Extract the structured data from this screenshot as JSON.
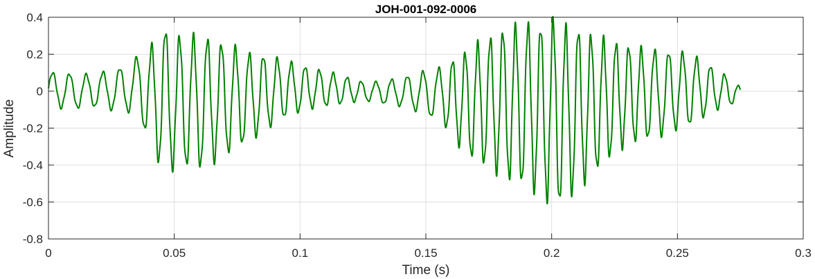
{
  "chart_data": {
    "type": "line",
    "title": "JOH-001-092-0006",
    "xlabel": "Time (s)",
    "ylabel": "Amplitude",
    "xlim": [
      0,
      0.3
    ],
    "ylim": [
      -0.8,
      0.4
    ],
    "xticks": [
      0,
      0.05,
      0.1,
      0.15,
      0.2,
      0.25,
      0.3
    ],
    "xtick_labels": [
      "0",
      "0.05",
      "0.1",
      "0.15",
      "0.2",
      "0.25",
      "0.3"
    ],
    "yticks": [
      -0.8,
      -0.6,
      -0.4,
      -0.2,
      0,
      0.2,
      0.4
    ],
    "ytick_labels": [
      "-0.8",
      "-0.6",
      "-0.4",
      "-0.2",
      "0",
      "0.2",
      "0.4"
    ],
    "grid": true,
    "series_color": "#008000",
    "series": [
      {
        "x": [
          0.0,
          0.005,
          0.01,
          0.015,
          0.02,
          0.025,
          0.03,
          0.035,
          0.04,
          0.045,
          0.05,
          0.055,
          0.06,
          0.065,
          0.07,
          0.075,
          0.08,
          0.085,
          0.09,
          0.095,
          0.1,
          0.105,
          0.11,
          0.115,
          0.12,
          0.125,
          0.13,
          0.135,
          0.14,
          0.145,
          0.15,
          0.155,
          0.16,
          0.165,
          0.17,
          0.175,
          0.18,
          0.185,
          0.19,
          0.195,
          0.2,
          0.205,
          0.21,
          0.215,
          0.22,
          0.225,
          0.23,
          0.235,
          0.24,
          0.245,
          0.25,
          0.255,
          0.26,
          0.265,
          0.27,
          0.275
        ],
        "upper": [
          0.1,
          0.1,
          0.09,
          0.09,
          0.1,
          0.11,
          0.13,
          0.18,
          0.22,
          0.34,
          0.3,
          0.28,
          0.3,
          0.27,
          0.25,
          0.23,
          0.2,
          0.19,
          0.18,
          0.16,
          0.14,
          0.12,
          0.11,
          0.09,
          0.07,
          0.05,
          0.05,
          0.06,
          0.07,
          0.09,
          0.11,
          0.12,
          0.16,
          0.2,
          0.25,
          0.28,
          0.32,
          0.34,
          0.36,
          0.34,
          0.38,
          0.34,
          0.33,
          0.3,
          0.28,
          0.26,
          0.24,
          0.23,
          0.22,
          0.21,
          0.21,
          0.2,
          0.16,
          0.12,
          0.08,
          0.02
        ],
        "lower": [
          -0.07,
          -0.09,
          -0.09,
          -0.09,
          -0.08,
          -0.1,
          -0.1,
          -0.13,
          -0.25,
          -0.42,
          -0.41,
          -0.4,
          -0.41,
          -0.38,
          -0.34,
          -0.3,
          -0.26,
          -0.22,
          -0.17,
          -0.13,
          -0.11,
          -0.09,
          -0.08,
          -0.07,
          -0.06,
          -0.05,
          -0.06,
          -0.07,
          -0.08,
          -0.1,
          -0.13,
          -0.15,
          -0.22,
          -0.33,
          -0.37,
          -0.4,
          -0.45,
          -0.48,
          -0.5,
          -0.55,
          -0.6,
          -0.6,
          -0.52,
          -0.46,
          -0.39,
          -0.33,
          -0.28,
          -0.26,
          -0.25,
          -0.23,
          -0.2,
          -0.18,
          -0.14,
          -0.1,
          -0.08,
          -0.05
        ],
        "cycles_per_second": [
          150,
          150,
          150,
          150,
          150,
          150,
          150,
          150,
          180,
          180,
          180,
          180,
          180,
          180,
          180,
          180,
          180,
          180,
          180,
          180,
          180,
          180,
          180,
          180,
          180,
          180,
          160,
          160,
          160,
          160,
          160,
          160,
          200,
          200,
          200,
          200,
          200,
          200,
          200,
          200,
          200,
          200,
          200,
          200,
          200,
          200,
          200,
          200,
          180,
          180,
          180,
          180,
          180,
          180,
          180,
          180
        ]
      }
    ]
  }
}
